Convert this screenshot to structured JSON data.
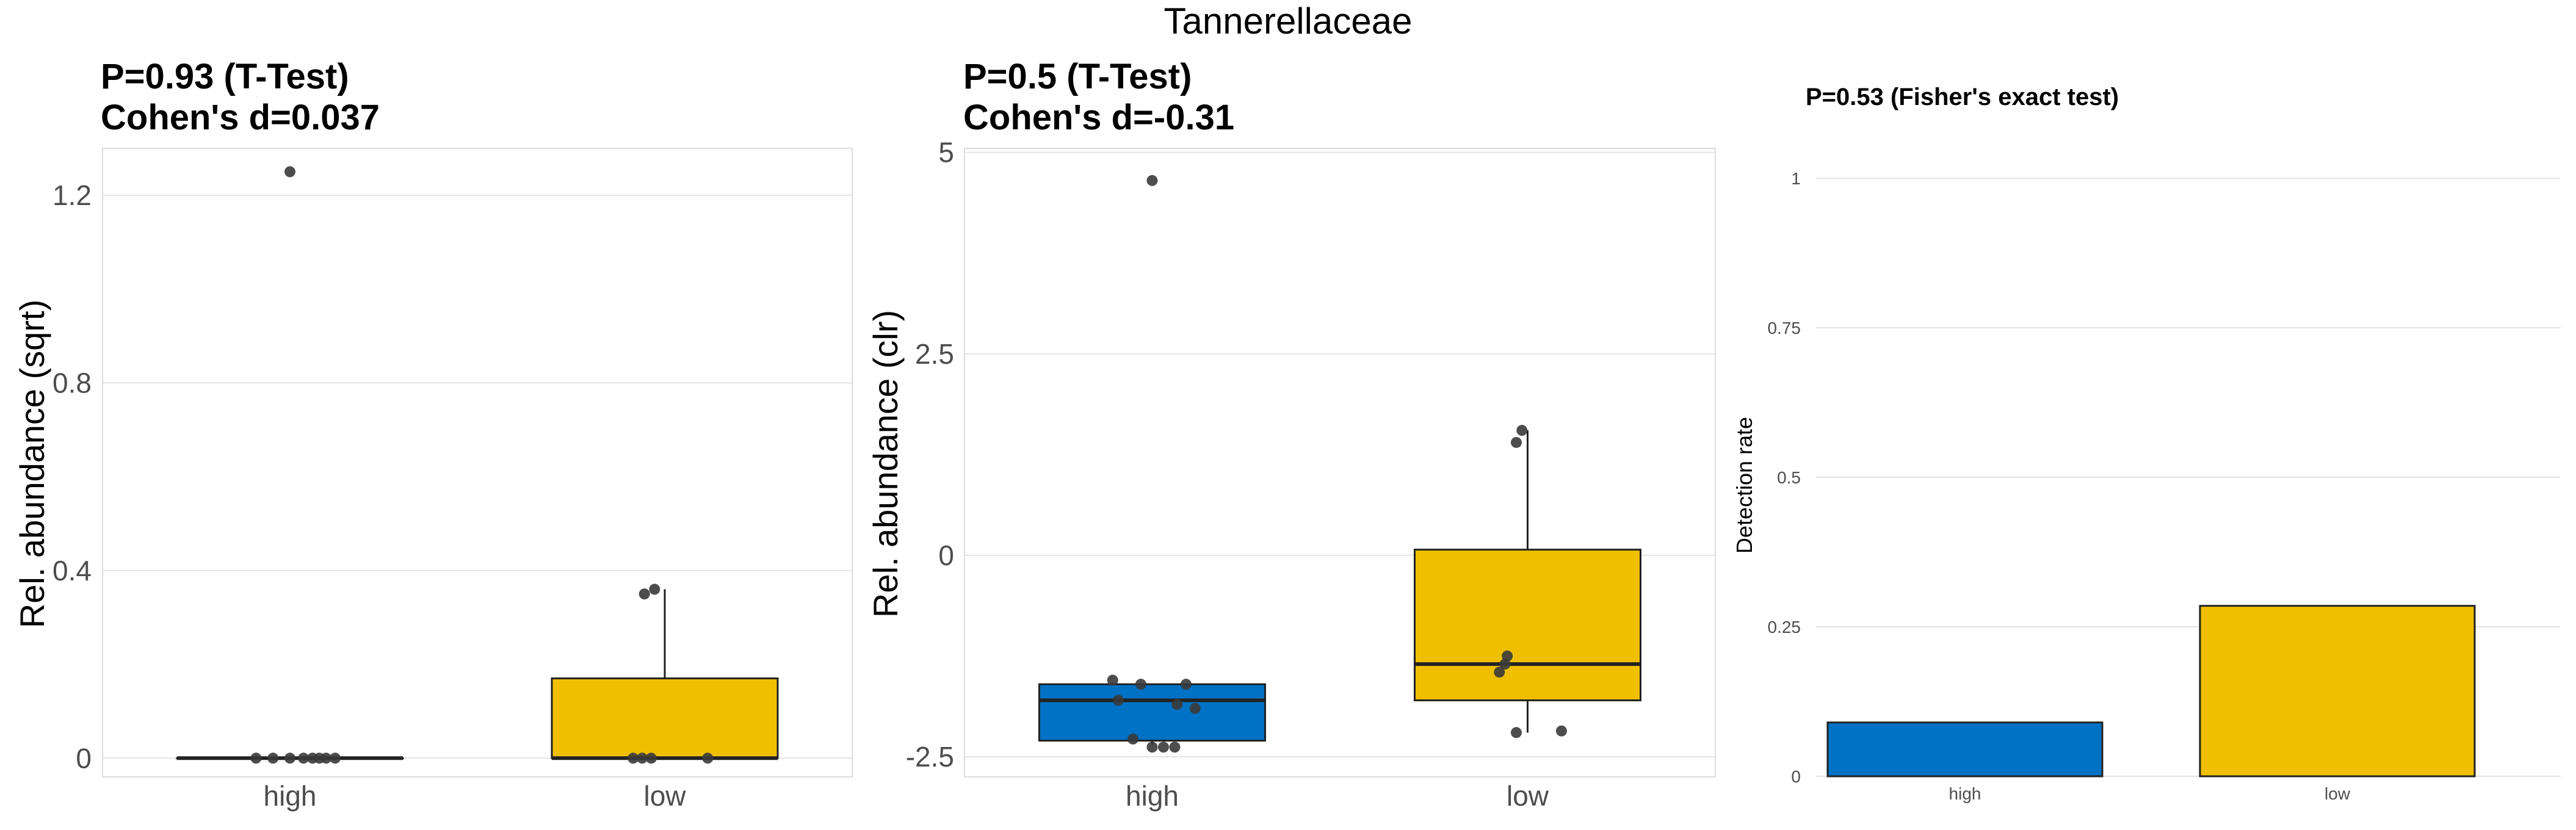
{
  "figure": {
    "title": "Tannerellaceae"
  },
  "colors": {
    "high": "#0072C6",
    "low": "#F0C000",
    "point": "#3a3a3a",
    "grid": "#e4e4e4",
    "axis_text": "#4d4d4d",
    "panel_border": "#dddddd"
  },
  "chart_data": [
    {
      "type": "box",
      "title_line1": "P=0.93 (T-Test)",
      "title_line2": "Cohen's d=0.037",
      "ylabel": "Rel. abundance (sqrt)",
      "xlabel": "",
      "categories": [
        "high",
        "low"
      ],
      "ylim": [
        -0.04,
        1.3
      ],
      "yticks": [
        0,
        0.4,
        0.8,
        1.2
      ],
      "ytick_labels": [
        "0",
        "0.4",
        "0.8",
        "1.2"
      ],
      "groups": [
        {
          "name": "high",
          "q1": 0,
          "median": 0,
          "q3": 0,
          "whisker_low": 0,
          "whisker_high": 0,
          "points": [
            [
              -0.3,
              0
            ],
            [
              -0.15,
              0
            ],
            [
              0,
              0
            ],
            [
              0.12,
              0
            ],
            [
              0.2,
              0
            ],
            [
              0.26,
              0
            ],
            [
              0.32,
              0
            ],
            [
              0.4,
              0
            ],
            [
              0,
              1.25
            ]
          ]
        },
        {
          "name": "low",
          "q1": 0,
          "median": 0,
          "q3": 0.17,
          "whisker_low": 0,
          "whisker_high": 0.36,
          "points": [
            [
              -0.28,
              0
            ],
            [
              -0.2,
              0
            ],
            [
              -0.12,
              0
            ],
            [
              0.38,
              0
            ],
            [
              -0.18,
              0.35
            ],
            [
              -0.09,
              0.36
            ]
          ]
        }
      ]
    },
    {
      "type": "box",
      "title_line1": "P=0.5 (T-Test)",
      "title_line2": "Cohen's d=-0.31",
      "ylabel": "Rel. abundance (clr)",
      "xlabel": "",
      "categories": [
        "high",
        "low"
      ],
      "ylim": [
        -2.75,
        5.05
      ],
      "yticks": [
        -2.5,
        0,
        2.5,
        5
      ],
      "ytick_labels": [
        "-2.5",
        "0",
        "2.5",
        "5"
      ],
      "groups": [
        {
          "name": "high",
          "q1": -2.3,
          "median": -1.8,
          "q3": -1.6,
          "whisker_low": -2.35,
          "whisker_high": -1.6,
          "points": [
            [
              -0.35,
              -1.55
            ],
            [
              -0.3,
              -1.8
            ],
            [
              -0.1,
              -1.6
            ],
            [
              0.22,
              -1.85
            ],
            [
              0.3,
              -1.6
            ],
            [
              -0.17,
              -2.28
            ],
            [
              0.0,
              -2.38
            ],
            [
              0.1,
              -2.38
            ],
            [
              0.2,
              -2.38
            ],
            [
              0.38,
              -1.9
            ],
            [
              0,
              4.65
            ]
          ]
        },
        {
          "name": "low",
          "q1": -1.8,
          "median": -1.35,
          "q3": 0.07,
          "whisker_low": -2.2,
          "whisker_high": 1.55,
          "points": [
            [
              -0.1,
              1.4
            ],
            [
              -0.05,
              1.55
            ],
            [
              -0.25,
              -1.45
            ],
            [
              -0.2,
              -1.35
            ],
            [
              -0.18,
              -1.25
            ],
            [
              -0.1,
              -2.2
            ],
            [
              0.3,
              -2.18
            ]
          ]
        }
      ]
    },
    {
      "type": "bar",
      "title": "P=0.53 (Fisher's exact test)",
      "ylabel": "Detection rate",
      "xlabel": "",
      "categories": [
        "high",
        "low"
      ],
      "values": [
        0.09,
        0.285
      ],
      "ylim": [
        0,
        1.05
      ],
      "yticks": [
        0,
        0.25,
        0.5,
        0.75,
        1
      ],
      "ytick_labels": [
        "0",
        "0.25",
        "0.5",
        "0.75",
        "1"
      ]
    }
  ]
}
